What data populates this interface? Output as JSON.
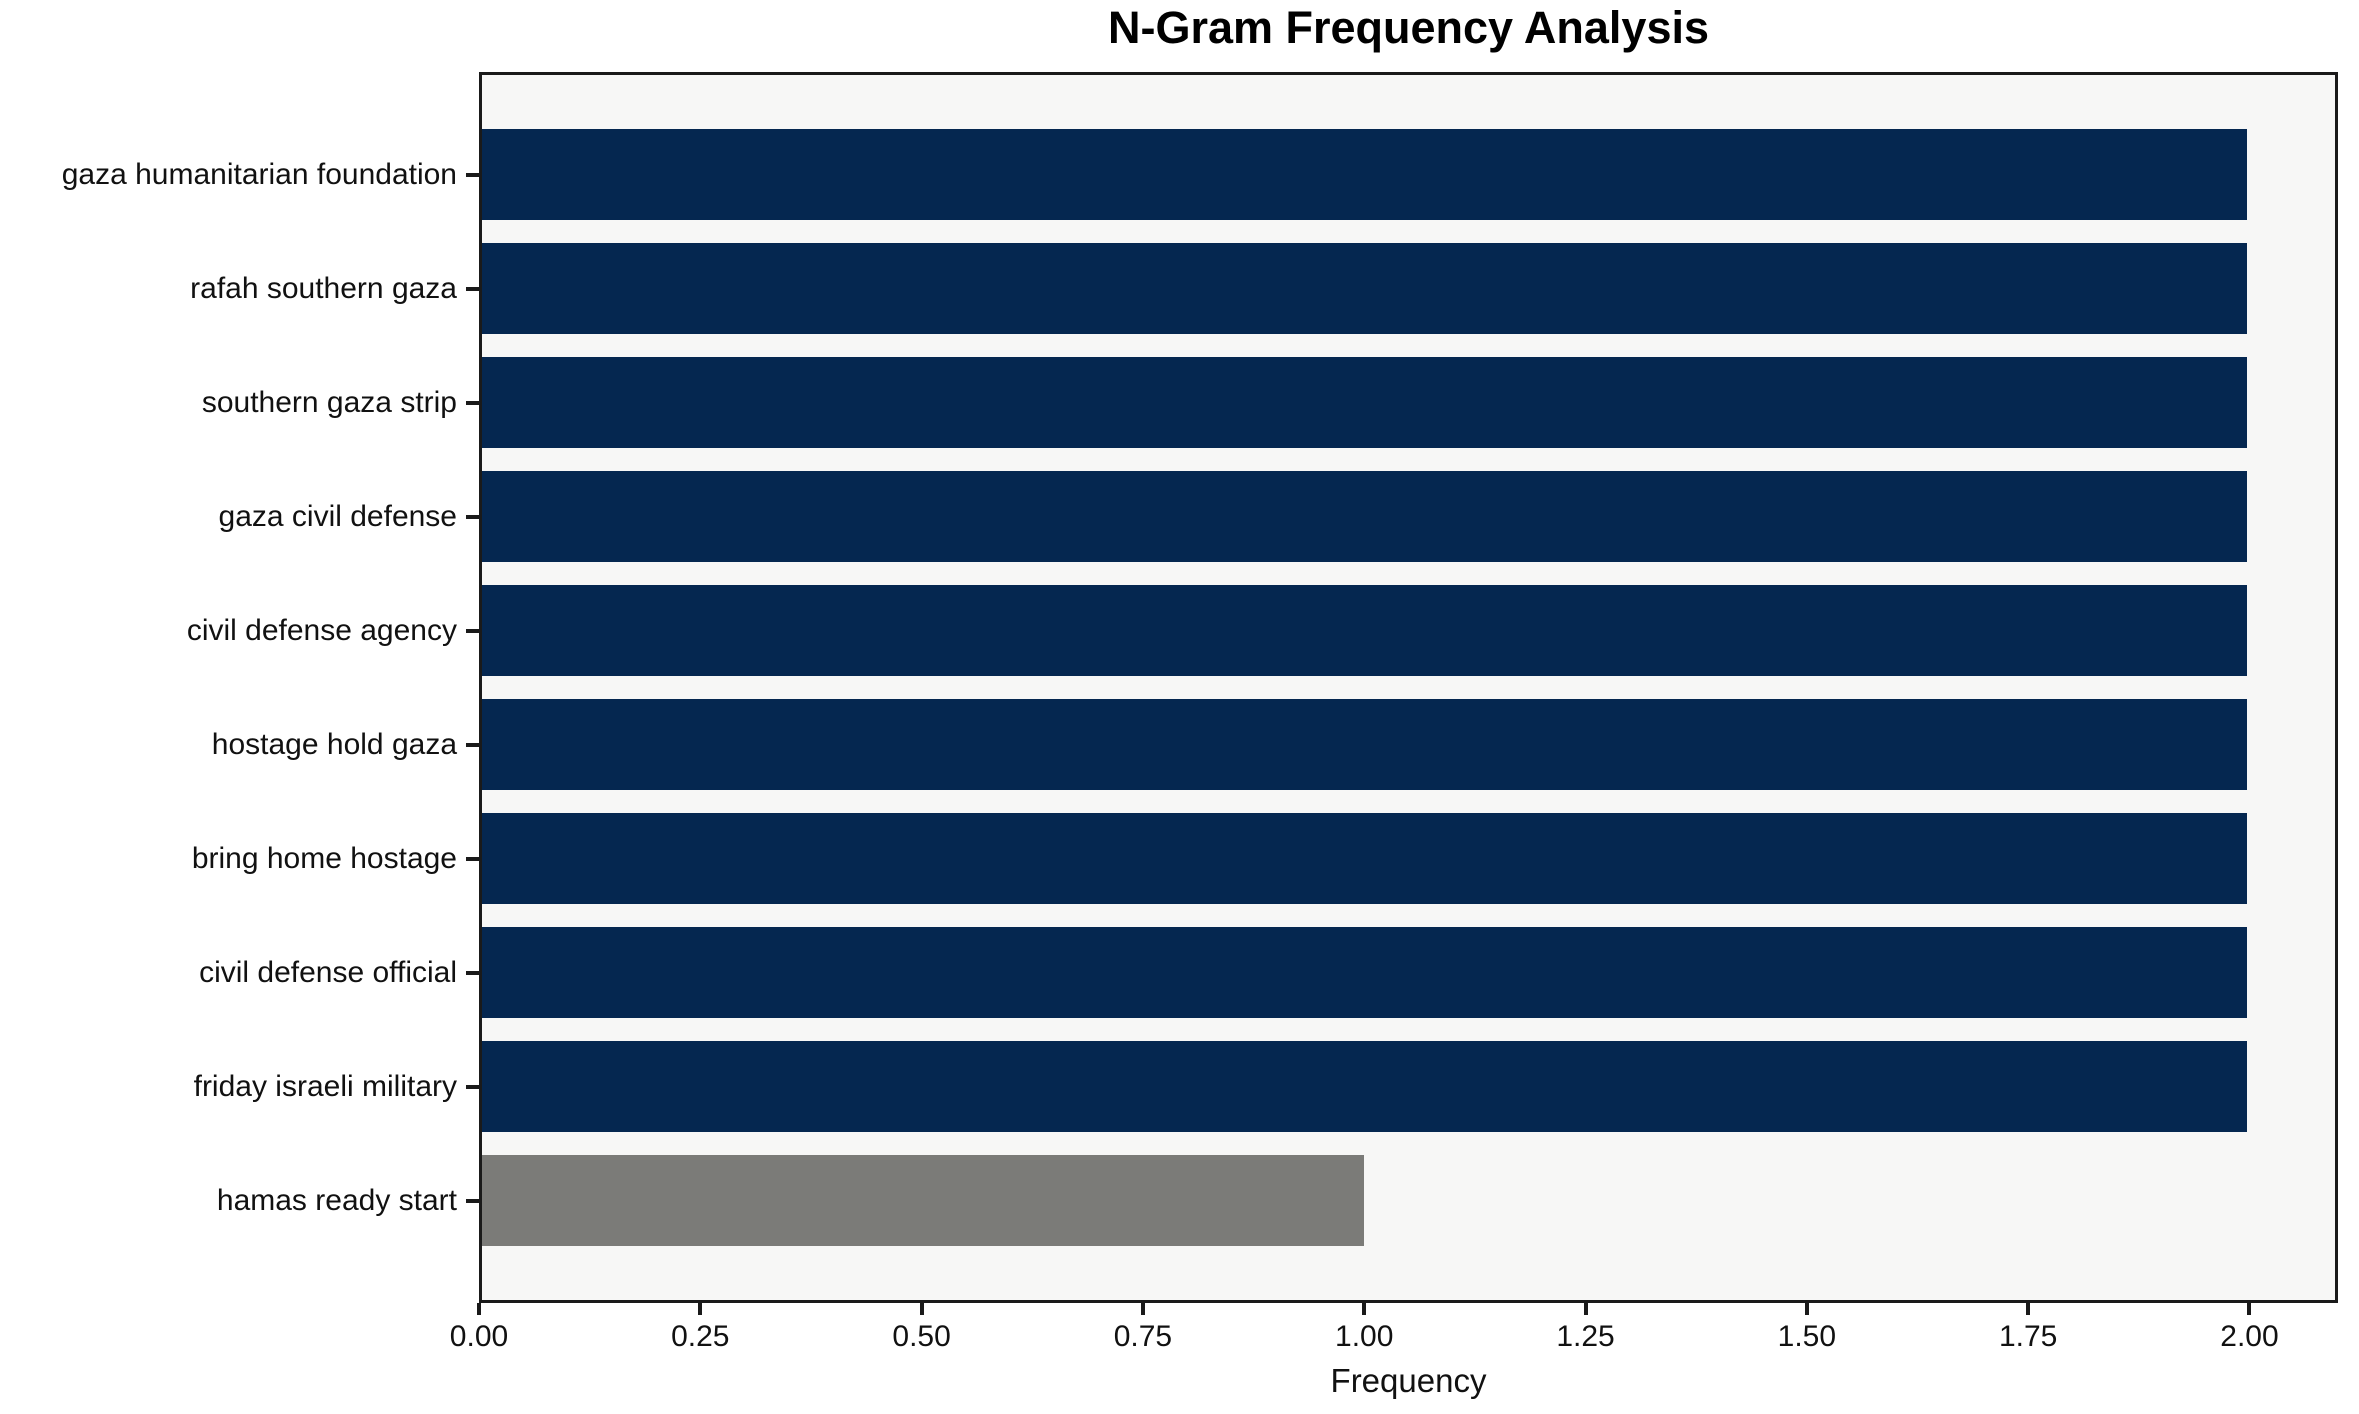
{
  "chart_data": {
    "type": "bar",
    "orientation": "horizontal",
    "title": "N-Gram Frequency Analysis",
    "xlabel": "Frequency",
    "ylabel": "",
    "categories": [
      "gaza humanitarian foundation",
      "rafah southern gaza",
      "southern gaza strip",
      "gaza civil defense",
      "civil defense agency",
      "hostage hold gaza",
      "bring home hostage",
      "civil defense official",
      "friday israeli military",
      "hamas ready start"
    ],
    "values": [
      2,
      2,
      2,
      2,
      2,
      2,
      2,
      2,
      2,
      1
    ],
    "bar_colors": [
      "#052750",
      "#052750",
      "#052750",
      "#052750",
      "#052750",
      "#052750",
      "#052750",
      "#052750",
      "#052750",
      "#7b7b78"
    ],
    "xlim": [
      0,
      2.1
    ],
    "x_ticks": [
      0,
      0.25,
      0.5,
      0.75,
      1.0,
      1.25,
      1.5,
      1.75,
      2.0
    ],
    "x_tick_labels": [
      "0.00",
      "0.25",
      "0.50",
      "0.75",
      "1.00",
      "1.25",
      "1.50",
      "1.75",
      "2.00"
    ],
    "grid": "off",
    "legend": "none",
    "plot_bg": "#f7f7f6",
    "figure_bg": "#ffffff",
    "spine_color": "#1a1a1a"
  }
}
